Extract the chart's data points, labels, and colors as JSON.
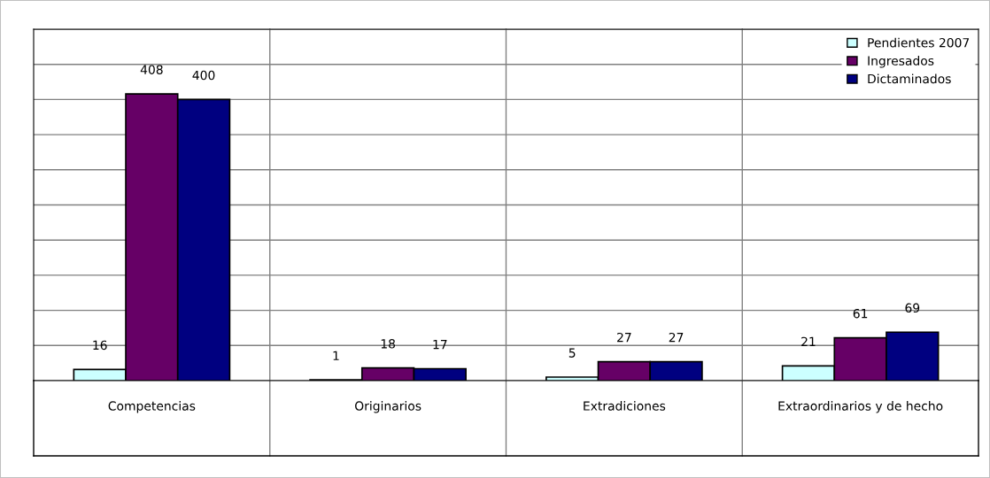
{
  "chart_data": {
    "type": "bar",
    "categories": [
      "Competencias",
      "Originarios",
      "Extradiciones",
      "Extraordinarios y de hecho"
    ],
    "series": [
      {
        "name": "Pendientes 2007",
        "color": "#ccffff",
        "values": [
          16,
          1,
          5,
          21
        ]
      },
      {
        "name": "Ingresados",
        "color": "#660066",
        "values": [
          408,
          18,
          27,
          61
        ]
      },
      {
        "name": "Dictaminados",
        "color": "#000080",
        "values": [
          400,
          17,
          27,
          69
        ]
      }
    ],
    "ylim": [
      0,
      500
    ],
    "yticks": [
      {
        "value": 0,
        "label": null
      },
      {
        "value": 50,
        "label": null
      },
      {
        "value": 100,
        "label": null
      },
      {
        "value": 150,
        "label": null
      },
      {
        "value": 200,
        "label": null
      },
      {
        "value": 250,
        "label": null
      },
      {
        "value": 300,
        "label": null
      },
      {
        "value": 350,
        "label": null
      },
      {
        "value": 400,
        "label": null
      },
      {
        "value": 450,
        "label": null
      },
      {
        "value": 500,
        "label": null
      }
    ],
    "tick_labels": "x",
    "grid": true,
    "legend": "top right",
    "data_labels": true
  }
}
